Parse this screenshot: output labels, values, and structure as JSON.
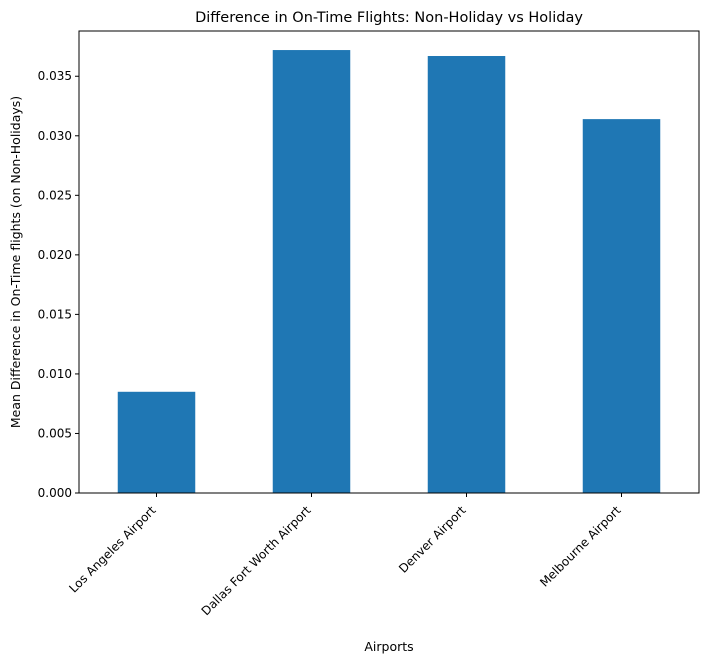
{
  "chart_data": {
    "type": "bar",
    "title": "Difference in On-Time Flights: Non-Holiday vs Holiday",
    "xlabel": "Airports",
    "ylabel": "Mean Difference in On-Time flights (on Non-Holidays)",
    "categories": [
      "Los Angeles Airport",
      "Dallas Fort Worth Airport",
      "Denver Airport",
      "Melbourne Airport"
    ],
    "values": [
      0.0085,
      0.0372,
      0.0367,
      0.0314
    ],
    "ylim": [
      0,
      0.0388
    ],
    "yticks": [
      0.0,
      0.005,
      0.01,
      0.015,
      0.02,
      0.025,
      0.03,
      0.035
    ],
    "ytick_labels": [
      "0.000",
      "0.005",
      "0.010",
      "0.015",
      "0.020",
      "0.025",
      "0.030",
      "0.035"
    ],
    "grid": false,
    "colors": {
      "bar": "#1f77b4"
    }
  }
}
